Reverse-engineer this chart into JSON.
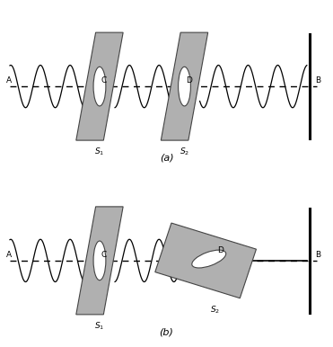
{
  "bg_color": "#ffffff",
  "barrier_fill": "#b0b0b0",
  "barrier_edge": "#444444",
  "wave_color": "#000000",
  "text_color": "#000000",
  "fig_width": 3.71,
  "fig_height": 3.86,
  "dpi": 100,
  "panels": [
    {
      "scenario": "a",
      "label": "(a)",
      "s2_rotated": false
    },
    {
      "scenario": "b",
      "label": "(b)",
      "s2_rotated": true
    }
  ]
}
